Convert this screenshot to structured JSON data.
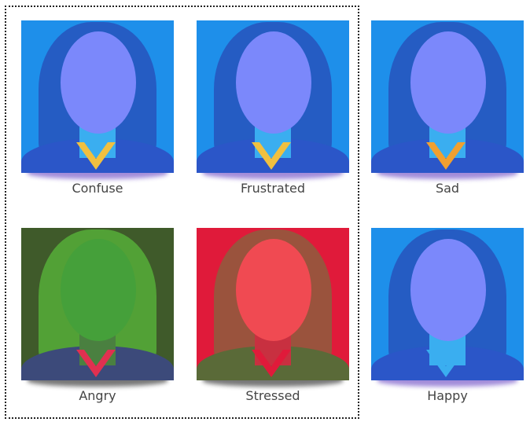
{
  "tiles": [
    {
      "label": "Confuse",
      "bg": "#1e8fea",
      "hair": "#2a3aa8",
      "face": "#7b88fb",
      "shoulders": "#2b56c8",
      "neck": "#3aaef0",
      "collar": "#f0c040",
      "shadow": "#8a6fd0"
    },
    {
      "label": "Frustrated",
      "bg": "#1e8fea",
      "hair": "#2a3aa8",
      "face": "#7b88fb",
      "shoulders": "#2b56c8",
      "neck": "#3aaef0",
      "collar": "#f0c040",
      "shadow": "#8a6fd0"
    },
    {
      "label": "Sad",
      "bg": "#1e8fea",
      "hair": "#2a3aa8",
      "face": "#7b88fb",
      "shoulders": "#2b56c8",
      "neck": "#3aaef0",
      "collar": "#f0a030",
      "shadow": "#8a6fd0"
    },
    {
      "label": "Angry",
      "bg": "#3f5a2a",
      "hair": "#5fd040",
      "face": "#45a03a",
      "shoulders": "#3c4a7a",
      "neck": "#4a8040",
      "collar": "#e03050",
      "shadow": "#555555"
    },
    {
      "label": "Stressed",
      "bg": "#e01a3a",
      "hair": "#6a7a40",
      "face": "#f04a52",
      "shoulders": "#5a6a38",
      "neck": "#c83040",
      "collar": "#e01a3a",
      "shadow": "#555555"
    },
    {
      "label": "Happy",
      "bg": "#1e8fea",
      "hair": "#2a3aa8",
      "face": "#7b88fb",
      "shoulders": "#2b56c8",
      "neck": "#3aaef0",
      "collar": "#3aaef0",
      "shadow": "#8a6fd0"
    }
  ]
}
